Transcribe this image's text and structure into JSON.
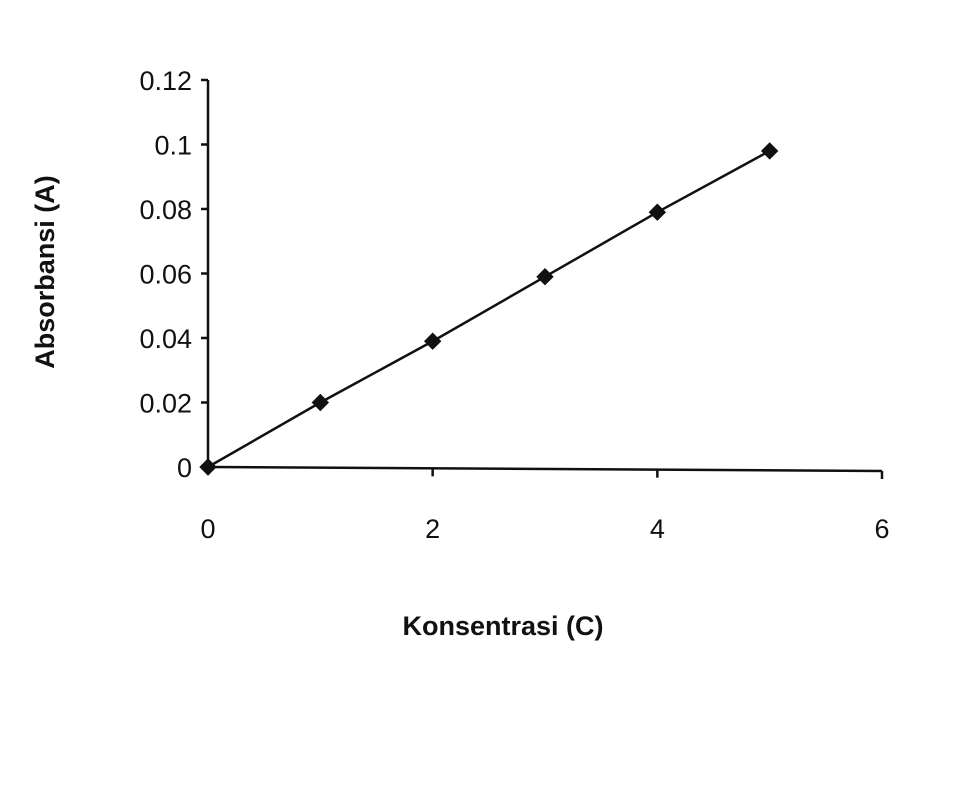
{
  "chart_data": {
    "type": "line",
    "title": "",
    "xlabel": "Konsentrasi (C)",
    "ylabel": "Absorbansi (A)",
    "xlim": [
      0,
      6
    ],
    "ylim": [
      0,
      0.12
    ],
    "x_ticks": [
      0,
      2,
      4,
      6
    ],
    "x_tick_labels": [
      "0",
      "2",
      "4",
      "6"
    ],
    "y_ticks": [
      0,
      0.02,
      0.04,
      0.06,
      0.08,
      0.1,
      0.12
    ],
    "y_tick_labels": [
      "0",
      "0.02",
      "0.04",
      "0.06",
      "0.08",
      "0.1",
      "0.12"
    ],
    "grid": false,
    "legend": null,
    "series": [
      {
        "name": "Absorbansi",
        "marker": "diamond",
        "line": "solid",
        "color": "#111111",
        "x": [
          0,
          1,
          2,
          3,
          4,
          5
        ],
        "y": [
          0,
          0.02,
          0.039,
          0.059,
          0.079,
          0.098
        ]
      }
    ]
  }
}
